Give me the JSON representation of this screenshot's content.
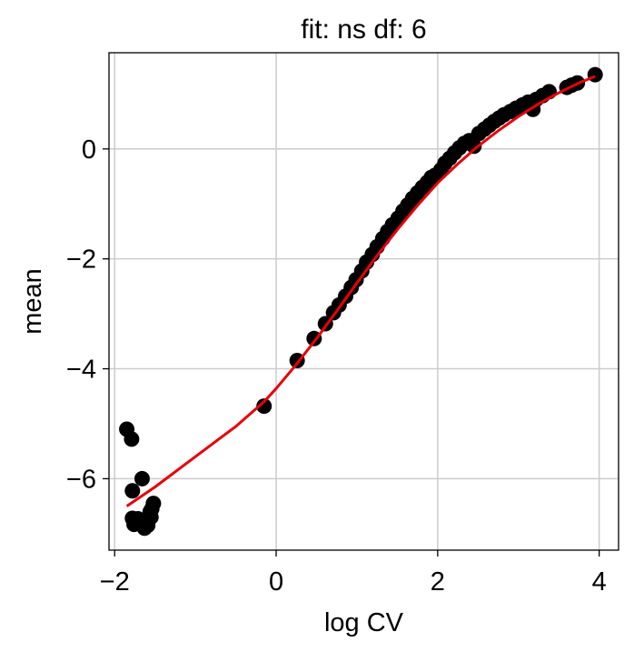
{
  "chart_data": {
    "type": "scatter",
    "title": "fit: ns df: 6",
    "xlabel": "log CV",
    "ylabel": "mean",
    "xlim": [
      -2.07,
      4.24
    ],
    "ylim": [
      -7.3,
      1.75
    ],
    "xticks": [
      -2,
      0,
      2,
      4
    ],
    "yticks": [
      -6,
      -4,
      -2,
      0
    ],
    "xtick_labels": [
      "−2",
      "0",
      "2",
      "4"
    ],
    "ytick_labels": [
      "−6",
      "−4",
      "−2",
      "0"
    ],
    "grid": true,
    "colors": {
      "points": "#000000",
      "fit": "#e8000b",
      "grid": "#cccccc"
    },
    "series": [
      {
        "kind": "points",
        "x": [
          -1.85,
          -1.79,
          -1.78,
          -1.76,
          -1.66,
          -1.71,
          -1.78,
          -1.63,
          -1.59,
          -1.62,
          -1.55,
          -1.56,
          -1.54,
          -1.52,
          -0.15,
          0.26,
          0.47,
          0.61,
          0.71,
          0.78,
          0.86,
          0.93,
          0.99,
          1.06,
          1.12,
          1.19,
          1.25,
          1.32,
          1.38,
          1.44,
          1.51,
          1.57,
          1.63,
          1.69,
          1.75,
          1.81,
          1.87,
          1.92,
          1.97,
          2.04,
          2.09,
          2.15,
          2.21,
          2.27,
          2.33,
          2.39,
          2.45,
          2.51,
          2.58,
          2.64,
          2.7,
          2.76,
          2.82,
          2.9,
          2.97,
          3.05,
          3.12,
          3.18,
          3.22,
          3.3,
          3.38,
          3.6,
          3.66,
          3.73,
          3.95
        ],
        "y": [
          -5.1,
          -5.28,
          -6.22,
          -6.83,
          -6.0,
          -6.73,
          -6.72,
          -6.9,
          -6.85,
          -6.79,
          -6.7,
          -6.6,
          -6.55,
          -6.45,
          -4.68,
          -3.85,
          -3.45,
          -3.18,
          -2.98,
          -2.84,
          -2.68,
          -2.52,
          -2.38,
          -2.22,
          -2.06,
          -1.92,
          -1.78,
          -1.63,
          -1.5,
          -1.38,
          -1.26,
          -1.13,
          -1.02,
          -0.9,
          -0.8,
          -0.7,
          -0.61,
          -0.52,
          -0.48,
          -0.38,
          -0.26,
          -0.17,
          -0.07,
          0.02,
          0.1,
          0.15,
          0.05,
          0.28,
          0.36,
          0.43,
          0.5,
          0.56,
          0.62,
          0.68,
          0.74,
          0.8,
          0.85,
          0.72,
          0.9,
          0.97,
          1.04,
          1.12,
          1.16,
          1.2,
          1.35
        ]
      },
      {
        "kind": "line",
        "x": [
          -1.85,
          -1.5,
          -1.0,
          -0.5,
          -0.15,
          0.0,
          0.25,
          0.5,
          0.75,
          1.0,
          1.25,
          1.5,
          1.75,
          2.0,
          2.25,
          2.5,
          2.75,
          3.0,
          3.25,
          3.5,
          3.75,
          3.95
        ],
        "y": [
          -6.5,
          -6.15,
          -5.6,
          -5.05,
          -4.6,
          -4.36,
          -3.92,
          -3.45,
          -2.95,
          -2.44,
          -1.94,
          -1.47,
          -1.03,
          -0.62,
          -0.27,
          0.05,
          0.33,
          0.59,
          0.82,
          1.02,
          1.2,
          1.32
        ]
      }
    ]
  }
}
